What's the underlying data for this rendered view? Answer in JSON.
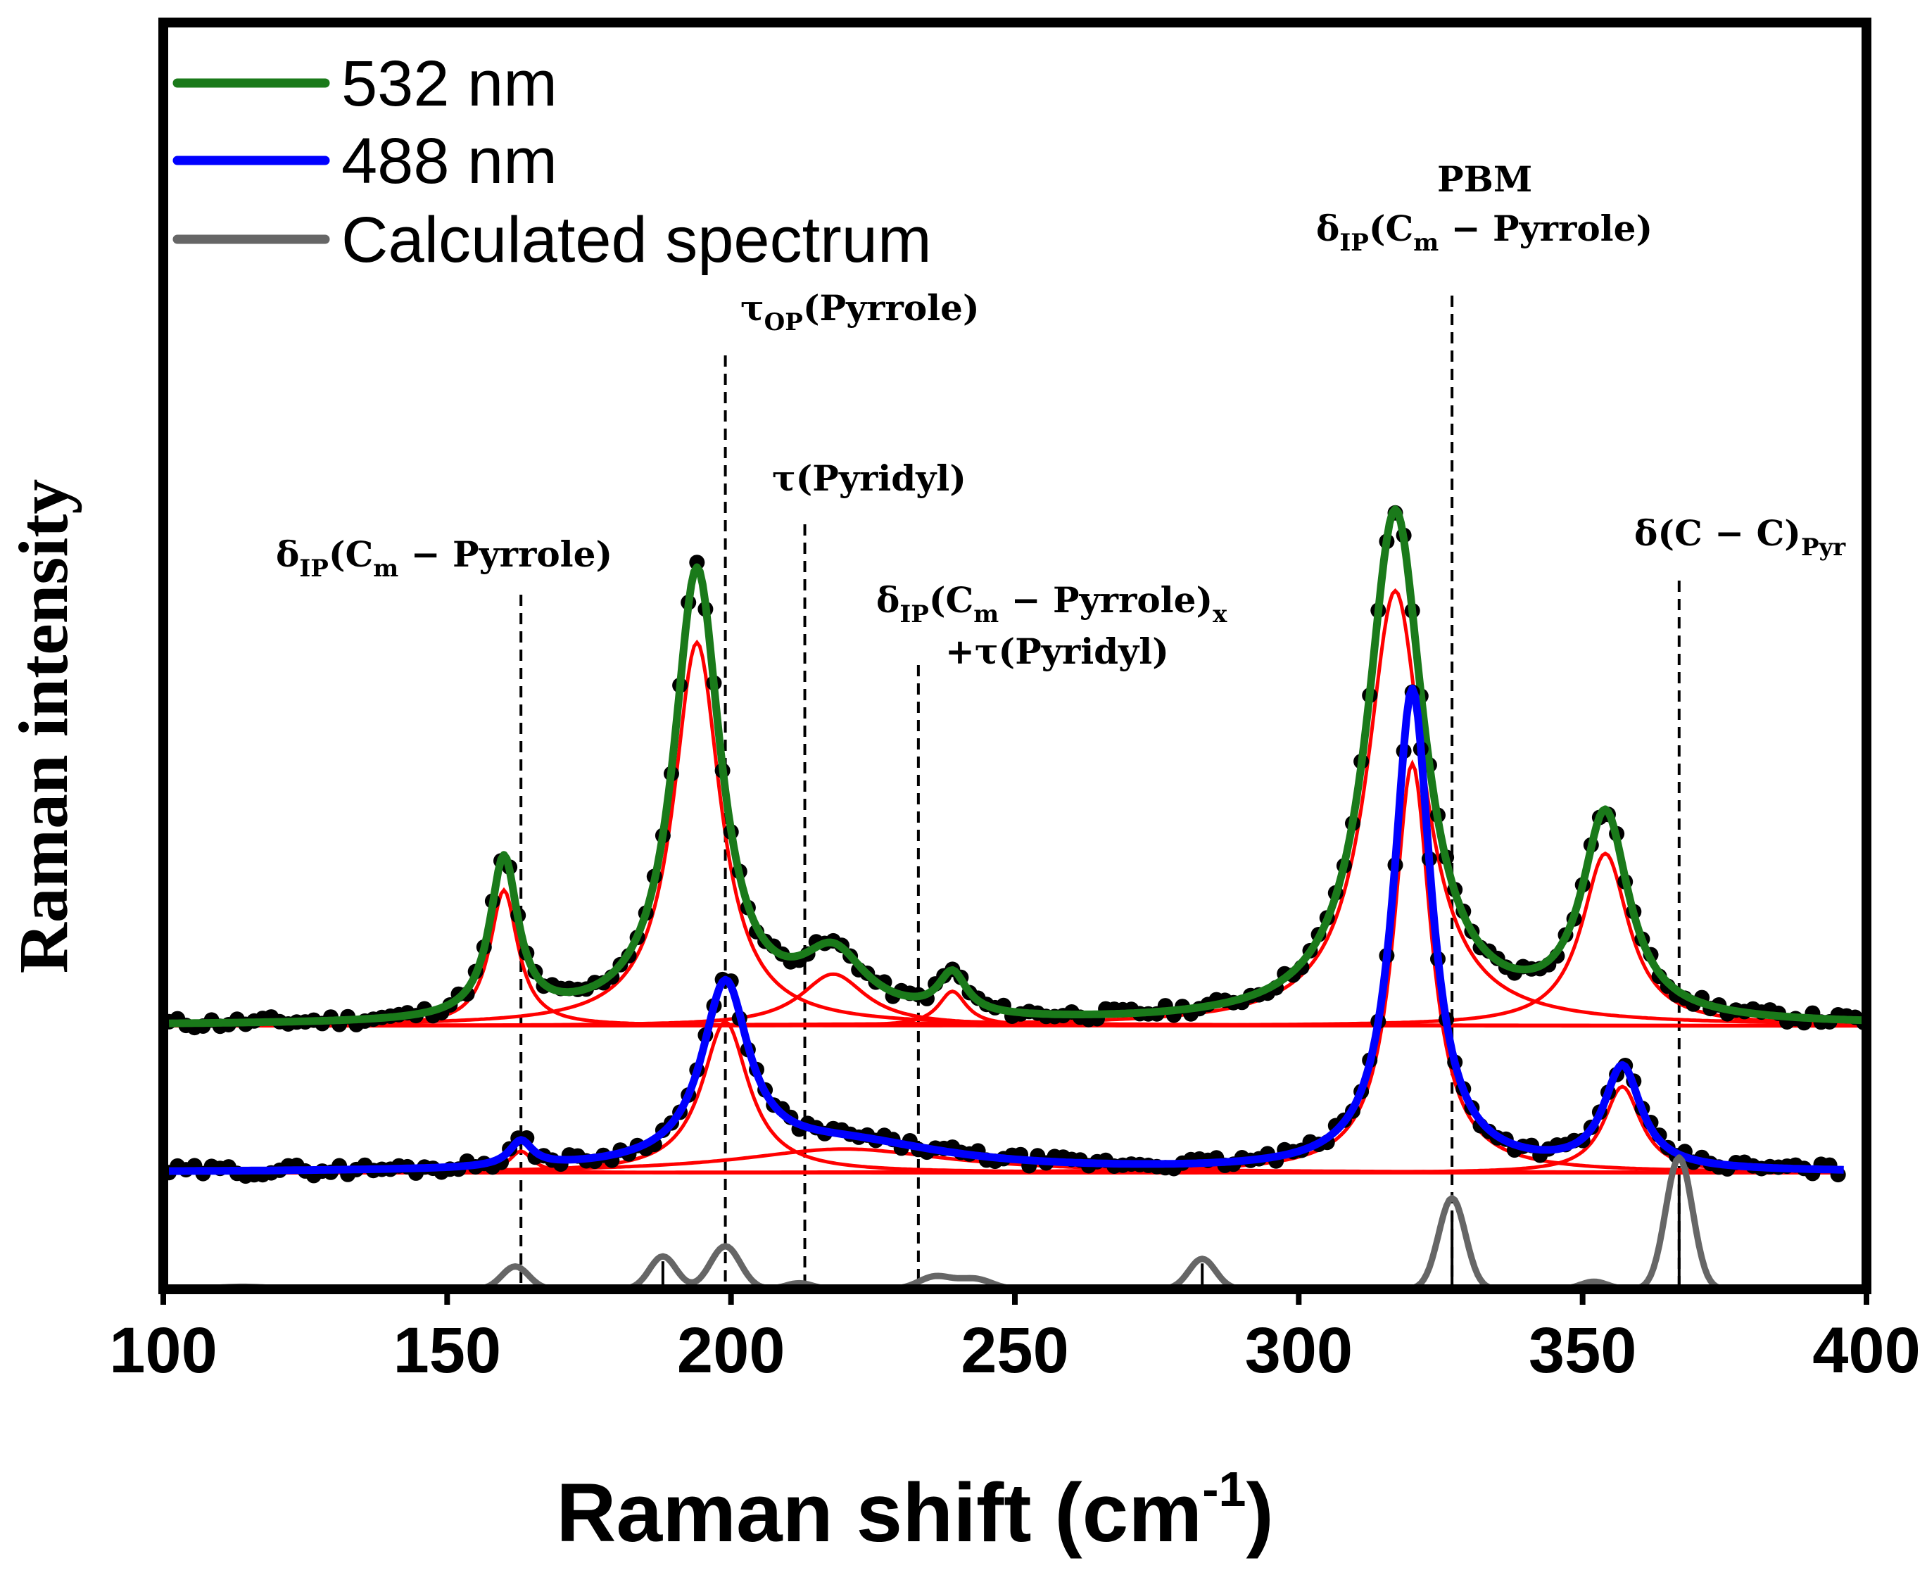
{
  "chart_data": {
    "type": "line",
    "title": "",
    "xlabel": "Raman shift (cm",
    "xlabel_sup": "-1",
    "xlabel_close": ")",
    "ylabel": "Raman intensity",
    "xlim": [
      100,
      400
    ],
    "ylim": [
      0,
      10
    ],
    "x_ticks": [
      100,
      150,
      200,
      250,
      300,
      350,
      400
    ],
    "grid": false,
    "legend_position": "top-left",
    "legend": [
      {
        "label": "532 nm",
        "color": "#1a7a1a"
      },
      {
        "label": "488 nm",
        "color": "#0000ff"
      },
      {
        "label": "Calculated spectrum",
        "color": "#666666"
      }
    ],
    "colors": {
      "fit_532": "#1a7a1a",
      "fit_488": "#0000ff",
      "components": "#ff0000",
      "experimental": "#000000",
      "calculated": "#666666"
    },
    "series": [
      {
        "name": "532 nm",
        "offset": 5.2,
        "peaks": [
          {
            "center": 160,
            "height": 3.15,
            "width": 6
          },
          {
            "center": 194,
            "height": 8.9,
            "width": 10
          },
          {
            "center": 218,
            "height": 1.2,
            "width": 14
          },
          {
            "center": 239,
            "height": 0.8,
            "width": 6
          },
          {
            "center": 317,
            "height": 10.1,
            "width": 12
          },
          {
            "center": 354,
            "height": 4.0,
            "width": 10
          }
        ]
      },
      {
        "name": "488 nm",
        "offset": 2.3,
        "peaks": [
          {
            "center": 163,
            "height": 0.5,
            "width": 5
          },
          {
            "center": 199,
            "height": 3.5,
            "width": 10
          },
          {
            "center": 220,
            "height": 0.55,
            "width": 45
          },
          {
            "center": 320,
            "height": 9.5,
            "width": 8
          },
          {
            "center": 357,
            "height": 2.0,
            "width": 8
          }
        ]
      },
      {
        "name": "Calculated spectrum",
        "offset": 0.0,
        "peaks": [
          {
            "center": 114,
            "height": 0.05,
            "width": 8
          },
          {
            "center": 162,
            "height": 0.45,
            "width": 4
          },
          {
            "center": 188,
            "height": 0.65,
            "width": 4
          },
          {
            "center": 199,
            "height": 0.85,
            "width": 4.5
          },
          {
            "center": 212,
            "height": 0.12,
            "width": 4
          },
          {
            "center": 236,
            "height": 0.25,
            "width": 5
          },
          {
            "center": 243,
            "height": 0.2,
            "width": 5
          },
          {
            "center": 283,
            "height": 0.6,
            "width": 4
          },
          {
            "center": 327,
            "height": 1.8,
            "width": 4
          },
          {
            "center": 352,
            "height": 0.15,
            "width": 4
          },
          {
            "center": 367,
            "height": 2.6,
            "width": 4
          }
        ],
        "stick_positions": [
          188,
          283,
          327,
          367
        ]
      }
    ],
    "reference_lines": [
      163,
      199,
      213,
      233,
      327,
      367
    ],
    "annotations": [
      {
        "main": "δ",
        "sub": "IP",
        "rest": "(C",
        "sub2": "m",
        "tail": " − Pyrrole)",
        "sub3": ""
      },
      {
        "main": "τ",
        "sub": "OP",
        "rest": "(Pyrrole)",
        "sub2": "",
        "tail": "",
        "sub3": ""
      },
      {
        "main": "τ(Pyridyl)",
        "sub": "",
        "rest": "",
        "sub2": "",
        "tail": "",
        "sub3": ""
      },
      {
        "main": "δ",
        "sub": "IP",
        "rest": "(C",
        "sub2": "m",
        "tail": " − Pyrrole)",
        "sub3": "x"
      },
      {
        "main": "+τ(Pyridyl)",
        "sub": "",
        "rest": "",
        "sub2": "",
        "tail": "",
        "sub3": ""
      },
      {
        "main": "PBM",
        "sub": "",
        "rest": "",
        "sub2": "",
        "tail": "",
        "sub3": ""
      },
      {
        "main": "δ",
        "sub": "IP",
        "rest": "(C",
        "sub2": "m",
        "tail": " − Pyrrole)",
        "sub3": ""
      },
      {
        "main": "δ(C − C)",
        "sub": "Pyr",
        "rest": "",
        "sub2": "",
        "tail": "",
        "sub3": ""
      }
    ]
  }
}
